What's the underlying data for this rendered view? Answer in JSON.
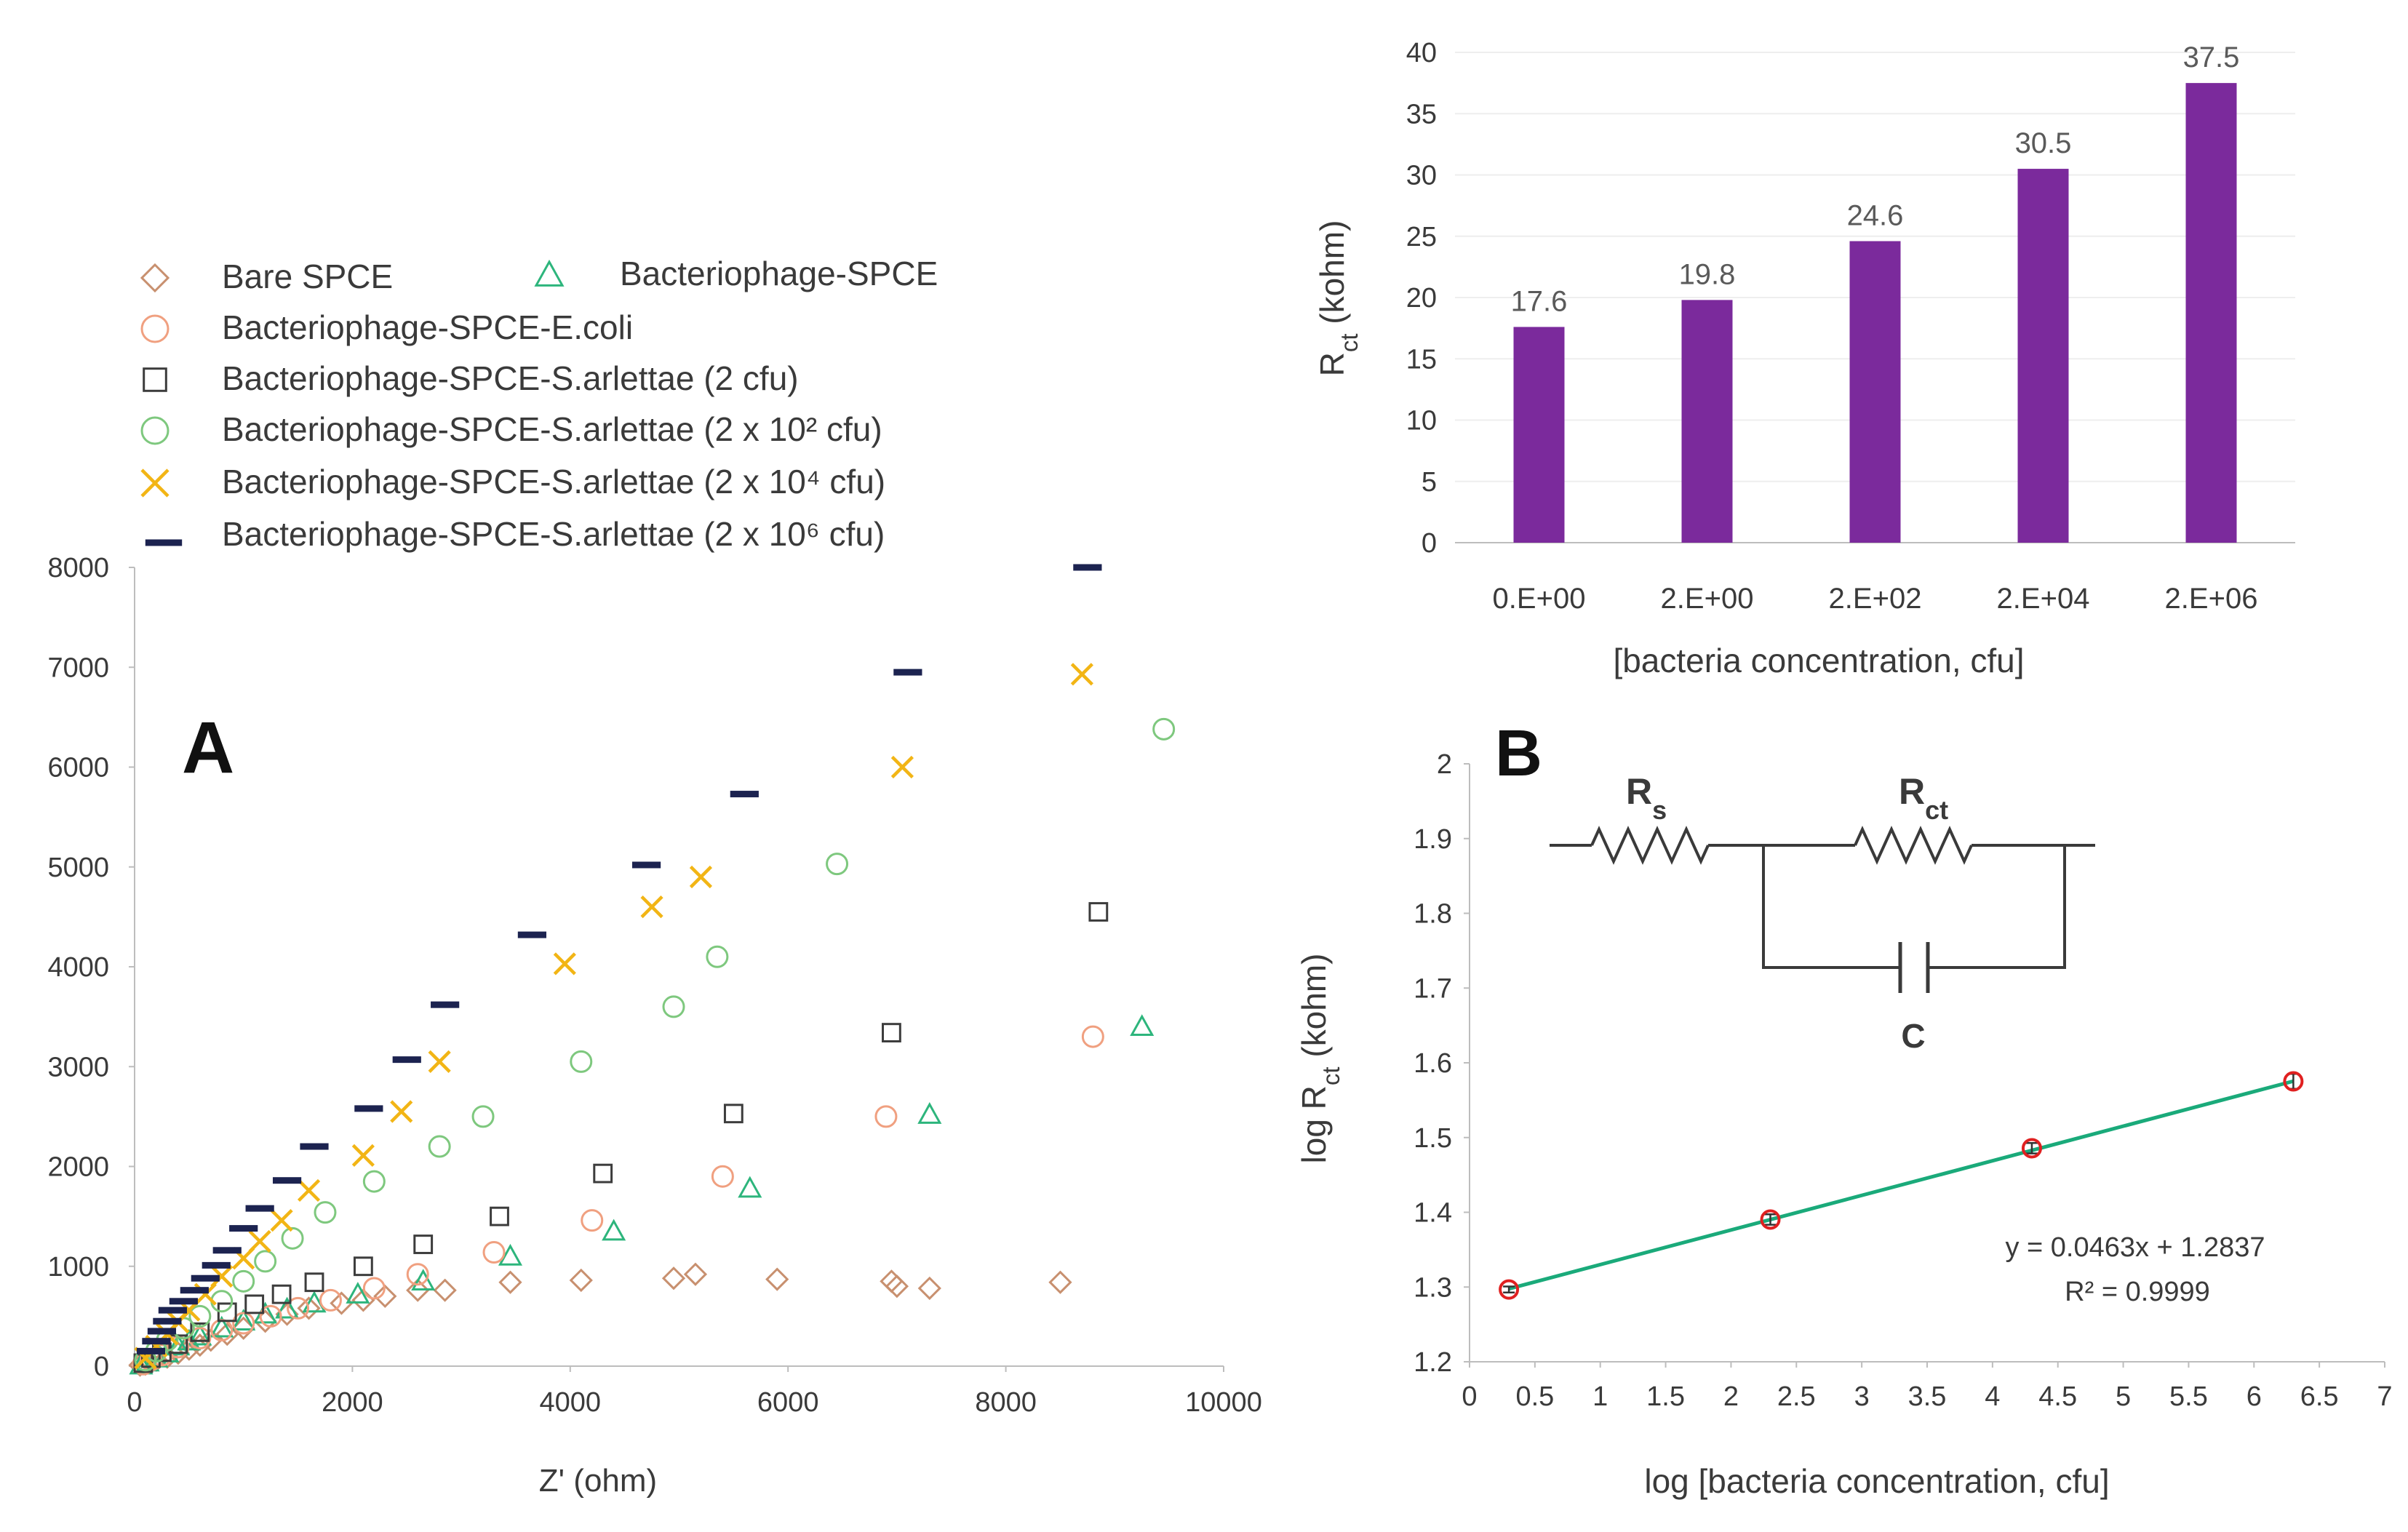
{
  "chart_data": [
    {
      "panel": "A",
      "type": "scatter",
      "panel_label": "A",
      "xlabel": "Z' (ohm)",
      "ylabel": "",
      "xlim": [
        0,
        10000
      ],
      "ylim": [
        0,
        8000
      ],
      "x_ticks": [
        0,
        2000,
        4000,
        6000,
        8000,
        10000
      ],
      "y_ticks": [
        0,
        1000,
        2000,
        3000,
        4000,
        5000,
        6000,
        7000,
        8000
      ],
      "legend_position": "top-left",
      "series": [
        {
          "name": "Bare SPCE",
          "color": "#c8906f",
          "marker": "diamond",
          "points": [
            [
              50,
              10
            ],
            [
              100,
              20
            ],
            [
              150,
              40
            ],
            [
              200,
              60
            ],
            [
              300,
              90
            ],
            [
              400,
              130
            ],
            [
              500,
              170
            ],
            [
              600,
              210
            ],
            [
              700,
              260
            ],
            [
              850,
              320
            ],
            [
              1000,
              380
            ],
            [
              1200,
              450
            ],
            [
              1400,
              520
            ],
            [
              1600,
              580
            ],
            [
              1900,
              630
            ],
            [
              2100,
              660
            ],
            [
              2300,
              700
            ],
            [
              2600,
              760
            ],
            [
              2850,
              760
            ],
            [
              3450,
              840
            ],
            [
              4100,
              860
            ],
            [
              4950,
              880
            ],
            [
              5150,
              920
            ],
            [
              5900,
              870
            ],
            [
              6950,
              850
            ],
            [
              7000,
              800
            ],
            [
              7300,
              780
            ],
            [
              8500,
              840
            ]
          ]
        },
        {
          "name": "Bacteriophage-SPCE",
          "color": "#2db57c",
          "marker": "triangle",
          "points": [
            [
              60,
              10
            ],
            [
              120,
              40
            ],
            [
              200,
              80
            ],
            [
              300,
              130
            ],
            [
              400,
              200
            ],
            [
              500,
              250
            ],
            [
              600,
              300
            ],
            [
              800,
              380
            ],
            [
              1000,
              450
            ],
            [
              1200,
              520
            ],
            [
              1400,
              570
            ],
            [
              1650,
              630
            ],
            [
              2050,
              720
            ],
            [
              2650,
              850
            ],
            [
              3450,
              1100
            ],
            [
              4400,
              1350
            ],
            [
              5650,
              1780
            ],
            [
              7300,
              2520
            ],
            [
              9250,
              3400
            ]
          ]
        },
        {
          "name": "Bacteriophage-SPCE-E.coli",
          "color": "#f0a080",
          "marker": "circle",
          "points": [
            [
              80,
              20
            ],
            [
              150,
              60
            ],
            [
              250,
              110
            ],
            [
              400,
              190
            ],
            [
              600,
              280
            ],
            [
              800,
              360
            ],
            [
              1000,
              430
            ],
            [
              1250,
              500
            ],
            [
              1500,
              580
            ],
            [
              1800,
              660
            ],
            [
              2200,
              780
            ],
            [
              2600,
              920
            ],
            [
              3300,
              1140
            ],
            [
              4200,
              1460
            ],
            [
              5400,
              1900
            ],
            [
              6900,
              2500
            ],
            [
              8800,
              3300
            ]
          ]
        },
        {
          "name": "Bacteriophage-SPCE-S.arlettae (2 cfu)",
          "color": "#3c3c3c",
          "marker": "square",
          "points": [
            [
              80,
              30
            ],
            [
              150,
              80
            ],
            [
              250,
              140
            ],
            [
              400,
              220
            ],
            [
              600,
              340
            ],
            [
              850,
              540
            ],
            [
              1100,
              620
            ],
            [
              1350,
              720
            ],
            [
              1650,
              840
            ],
            [
              2100,
              1000
            ],
            [
              2650,
              1220
            ],
            [
              3350,
              1500
            ],
            [
              4300,
              1930
            ],
            [
              5500,
              2530
            ],
            [
              6950,
              3340
            ],
            [
              8850,
              4550
            ]
          ]
        },
        {
          "name": "Bacteriophage-SPCE-S.arlettae (2 x 10² cfu)",
          "color": "#7ec87e",
          "marker": "circle",
          "points": [
            [
              100,
              60
            ],
            [
              200,
              150
            ],
            [
              300,
              260
            ],
            [
              450,
              380
            ],
            [
              600,
              500
            ],
            [
              800,
              650
            ],
            [
              1000,
              850
            ],
            [
              1200,
              1050
            ],
            [
              1450,
              1280
            ],
            [
              1750,
              1540
            ],
            [
              2200,
              1850
            ],
            [
              2800,
              2200
            ],
            [
              3200,
              2500
            ],
            [
              4100,
              3050
            ],
            [
              4950,
              3600
            ],
            [
              5350,
              4100
            ],
            [
              6450,
              5030
            ],
            [
              9450,
              6380
            ]
          ]
        },
        {
          "name": "Bacteriophage-SPCE-S.arlettae (2 x 10⁴ cfu)",
          "color": "#f2b515",
          "marker": "x",
          "points": [
            [
              100,
              80
            ],
            [
              200,
              200
            ],
            [
              300,
              320
            ],
            [
              400,
              440
            ],
            [
              500,
              560
            ],
            [
              650,
              720
            ],
            [
              800,
              900
            ],
            [
              1000,
              1080
            ],
            [
              1150,
              1250
            ],
            [
              1350,
              1460
            ],
            [
              1600,
              1760
            ],
            [
              2100,
              2110
            ],
            [
              2450,
              2550
            ],
            [
              2800,
              3050
            ],
            [
              3950,
              4030
            ],
            [
              4750,
              4600
            ],
            [
              5200,
              4900
            ],
            [
              7050,
              6000
            ],
            [
              8700,
              6930
            ]
          ]
        },
        {
          "name": "Bacteriophage-SPCE-S.arlettae (2 x 10⁶ cfu)",
          "color": "#1c2350",
          "marker": "dash",
          "points": [
            [
              150,
              150
            ],
            [
              200,
              250
            ],
            [
              250,
              350
            ],
            [
              300,
              450
            ],
            [
              350,
              560
            ],
            [
              450,
              650
            ],
            [
              550,
              760
            ],
            [
              650,
              880
            ],
            [
              750,
              1010
            ],
            [
              850,
              1160
            ],
            [
              1000,
              1380
            ],
            [
              1150,
              1580
            ],
            [
              1400,
              1860
            ],
            [
              1650,
              2200
            ],
            [
              2150,
              2580
            ],
            [
              2500,
              3070
            ],
            [
              2850,
              3620
            ],
            [
              3650,
              4320
            ],
            [
              4700,
              5020
            ],
            [
              5600,
              5730
            ],
            [
              7100,
              6950
            ],
            [
              8750,
              8000
            ]
          ]
        }
      ]
    },
    {
      "panel": "top-right",
      "type": "bar",
      "categories": [
        "0.E+00",
        "2.E+00",
        "2.E+02",
        "2.E+04",
        "2.E+06"
      ],
      "values": [
        17.6,
        19.8,
        24.6,
        30.5,
        37.5
      ],
      "value_labels": [
        "17.6",
        "19.8",
        "24.6",
        "30.5",
        "37.5"
      ],
      "bar_color": "#7b2a9c",
      "xlabel": "[bacteria concentration, cfu]",
      "ylabel_main": "R",
      "ylabel_sub": "ct",
      "ylabel_suffix": " (kohm)",
      "ylim": [
        0,
        40
      ],
      "y_ticks": [
        0,
        5,
        10,
        15,
        20,
        25,
        30,
        35,
        40
      ]
    },
    {
      "panel": "B",
      "type": "scatter",
      "panel_label": "B",
      "xlabel": "log [bacteria concentration, cfu]",
      "ylabel_main": "log R",
      "ylabel_sub": "ct",
      "ylabel_suffix": " (kohm)",
      "xlim": [
        0,
        7
      ],
      "ylim": [
        1.2,
        2.0
      ],
      "x_ticks": [
        0,
        0.5,
        1,
        1.5,
        2,
        2.5,
        3,
        3.5,
        4,
        4.5,
        5,
        5.5,
        6,
        6.5,
        7
      ],
      "x_tick_labels": [
        "0",
        "0.5",
        "1",
        "1.5",
        "2",
        "2.5",
        "3",
        "3.5",
        "4",
        "4.5",
        "5",
        "5.5",
        "6",
        "6.5",
        "7"
      ],
      "y_ticks": [
        1.2,
        1.3,
        1.4,
        1.5,
        1.6,
        1.7,
        1.8,
        1.9,
        2.0
      ],
      "y_tick_labels": [
        "1.2",
        "1.3",
        "1.4",
        "1.5",
        "1.6",
        "1.7",
        "1.8",
        "1.9",
        "2"
      ],
      "x": [
        0.301,
        2.301,
        4.301,
        6.301
      ],
      "y": [
        1.2967,
        1.3903,
        1.4857,
        1.5752
      ],
      "error": [
        0.004,
        0.007,
        0.007,
        0.01
      ],
      "marker_color": "#e02020",
      "trendline": {
        "slope": 0.0463,
        "intercept": 1.2837,
        "color": "#1aaa7a",
        "x_range": [
          0.301,
          6.301
        ]
      },
      "equation_text": "y = 0.0463x + 1.2837",
      "r2_text": "R² = 0.9999",
      "circuit": {
        "rs_main": "R",
        "rs_sub": "s",
        "rct_main": "R",
        "rct_sub": "ct",
        "c_label": "C"
      }
    }
  ]
}
